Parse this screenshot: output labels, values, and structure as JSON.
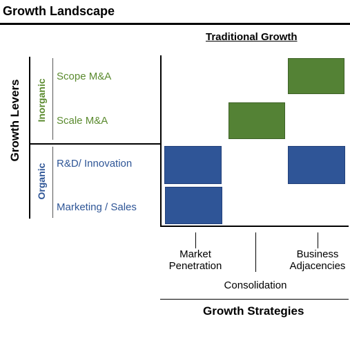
{
  "title": "Growth Landscape",
  "subtitle": "Traditional Growth",
  "y_axis_label": "Growth Levers",
  "groups": {
    "inorganic": "Inorganic",
    "organic": "Organic"
  },
  "rows": [
    {
      "label": "Scope M&A"
    },
    {
      "label": "Scale M&A"
    },
    {
      "label": "R&D/ Innovation"
    },
    {
      "label": "Marketing / Sales"
    }
  ],
  "strategies": {
    "market_penetration": {
      "line1": "Market",
      "line2": "Penetration"
    },
    "consolidation": "Consolidation",
    "business_adjacencies": {
      "line1": "Business",
      "line2": "Adjacencies"
    }
  },
  "x_axis_label": "Growth Strategies",
  "colors": {
    "inorganic": "#548235",
    "organic": "#2f5597"
  }
}
